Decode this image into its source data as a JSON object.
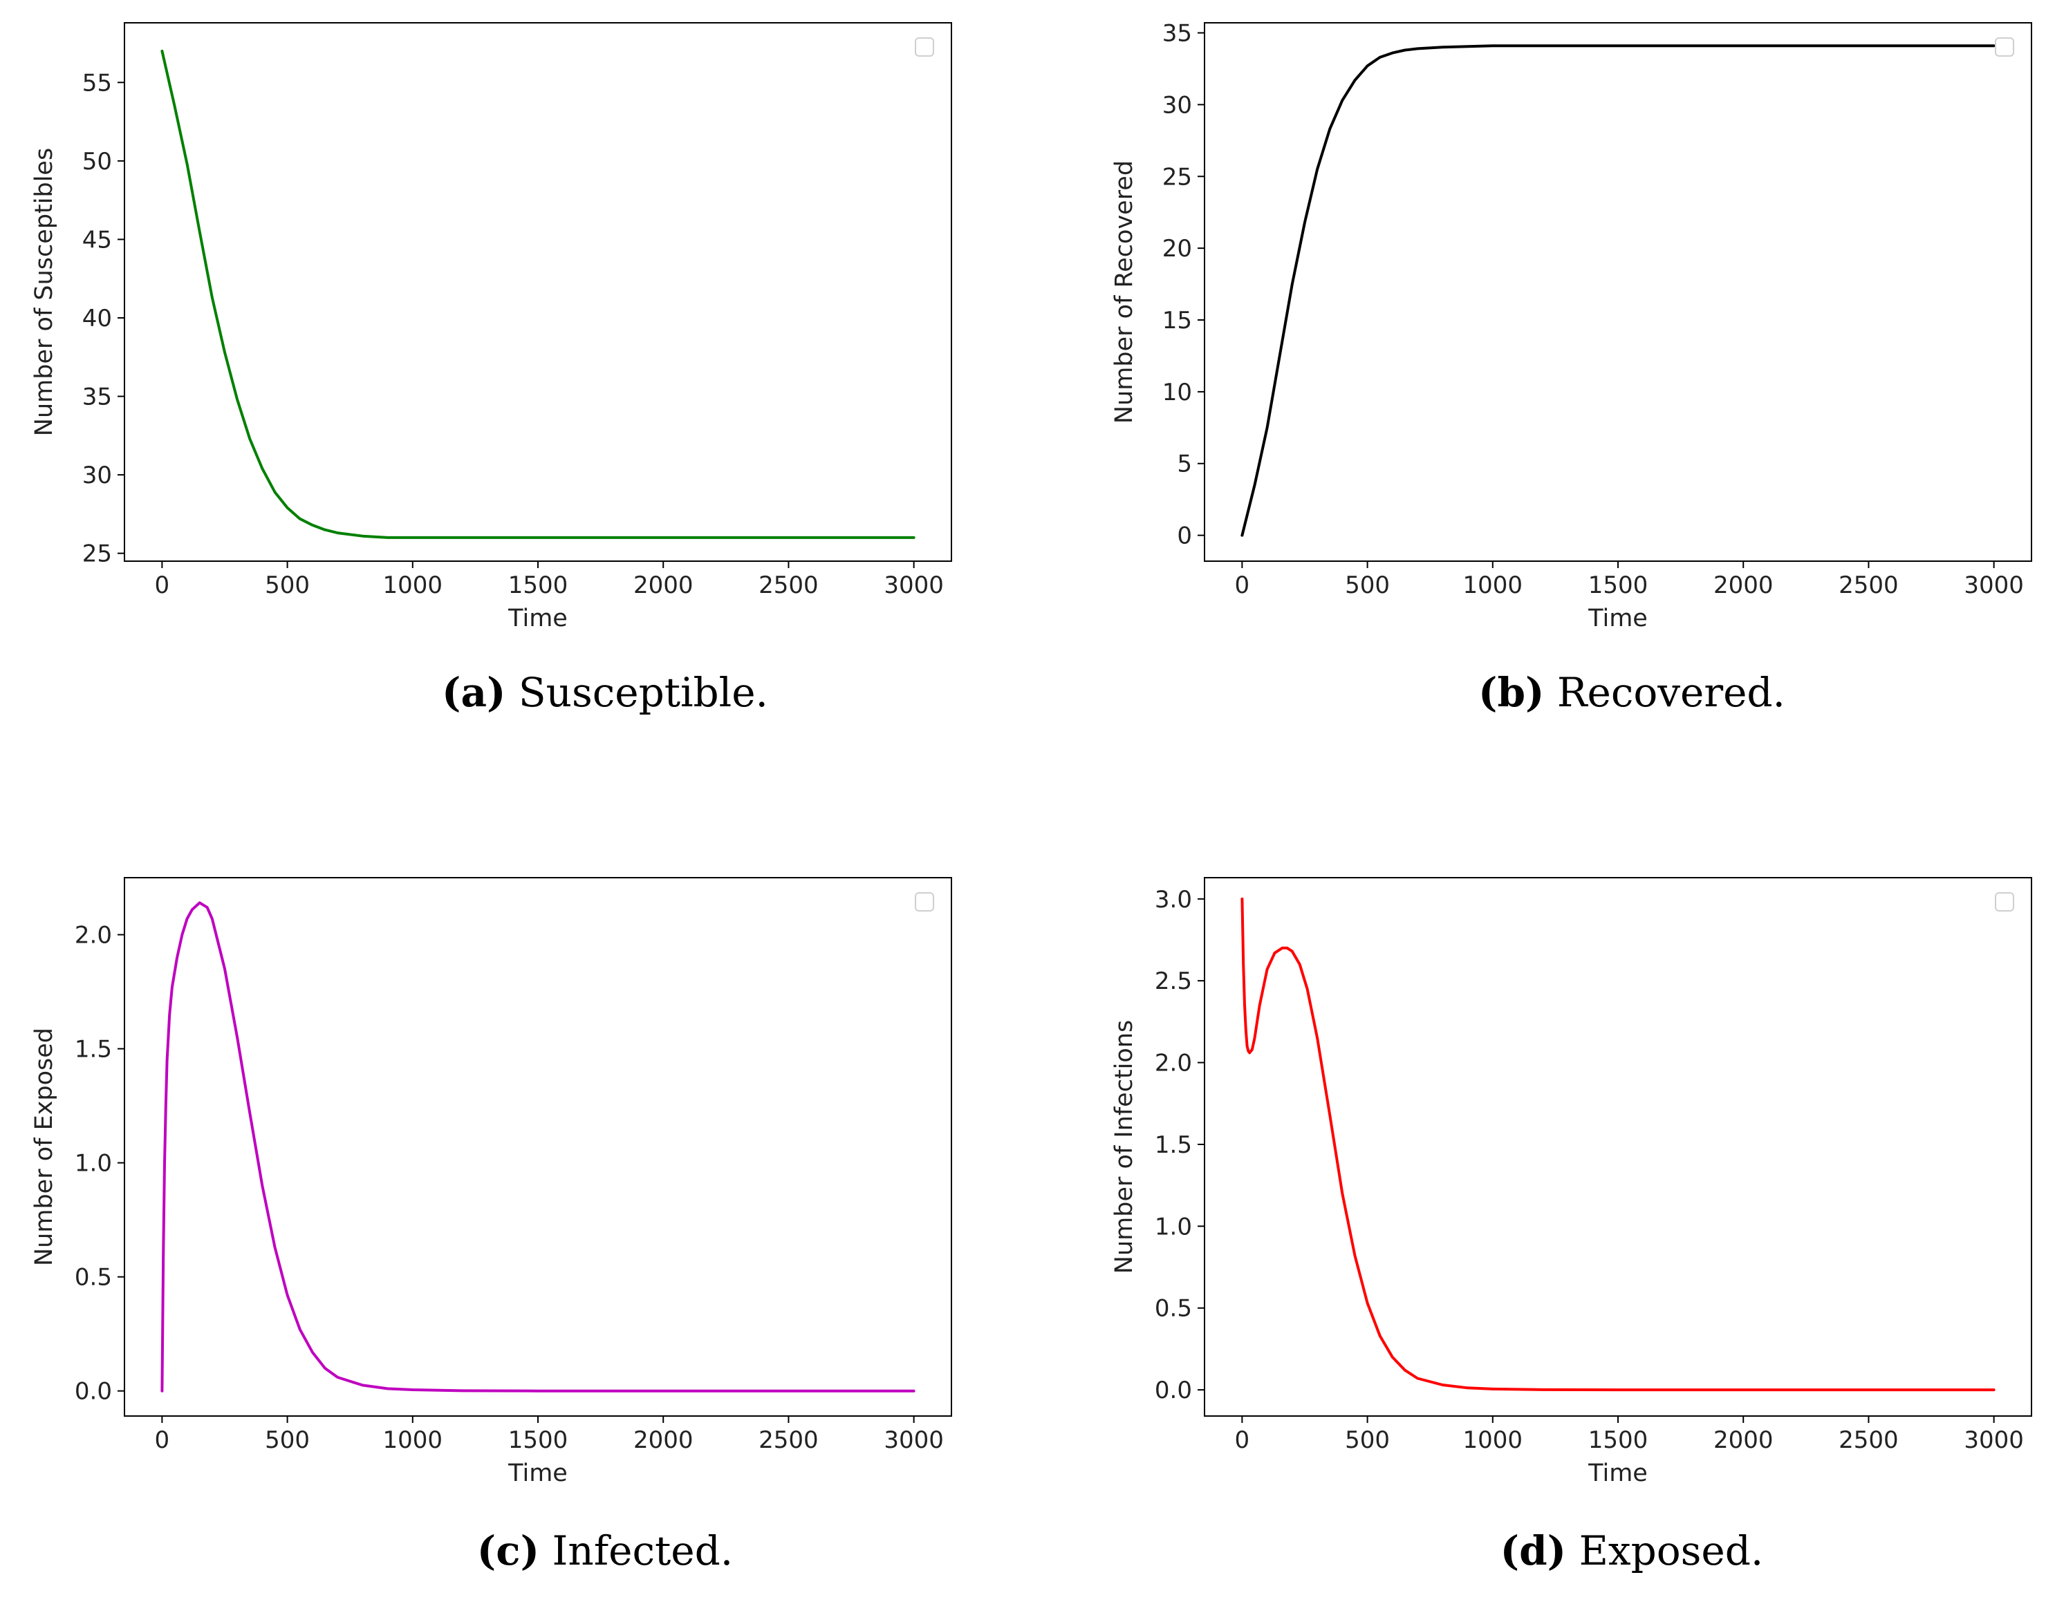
{
  "chart_data": [
    {
      "id": "a",
      "type": "line",
      "ylabel": "Number of Susceptibles",
      "xlabel": "Time",
      "xlim": [
        -150,
        3150
      ],
      "ylim": [
        24.5,
        58.8
      ],
      "xticks": [
        0,
        500,
        1000,
        1500,
        2000,
        2500,
        3000
      ],
      "yticks": [
        25,
        30,
        35,
        40,
        45,
        50,
        55
      ],
      "ytick_labels": [
        "25",
        "30",
        "35",
        "40",
        "45",
        "50",
        "55"
      ],
      "color": "#008000",
      "legend": "top-right (empty)",
      "series": [
        {
          "name": "Susceptible",
          "x": [
            0,
            50,
            100,
            150,
            200,
            250,
            300,
            350,
            400,
            450,
            500,
            550,
            600,
            650,
            700,
            800,
            900,
            1000,
            1100,
            1200,
            1500,
            2000,
            2500,
            3000
          ],
          "y": [
            57,
            53.5,
            49.8,
            45.5,
            41.3,
            37.8,
            34.8,
            32.3,
            30.4,
            28.9,
            27.9,
            27.2,
            26.8,
            26.5,
            26.3,
            26.1,
            26.0,
            26.0,
            26.0,
            26.0,
            26.0,
            26.0,
            26.0,
            26.0
          ]
        }
      ],
      "caption_letter": "(a)",
      "caption_text": " Susceptible."
    },
    {
      "id": "b",
      "type": "line",
      "ylabel": "Number of Recovered",
      "xlabel": "Time",
      "xlim": [
        -150,
        3150
      ],
      "ylim": [
        -1.8,
        35.7
      ],
      "xticks": [
        0,
        500,
        1000,
        1500,
        2000,
        2500,
        3000
      ],
      "yticks": [
        0,
        5,
        10,
        15,
        20,
        25,
        30,
        35
      ],
      "ytick_labels": [
        "0",
        "5",
        "10",
        "15",
        "20",
        "25",
        "30",
        "35"
      ],
      "color": "#000000",
      "legend": "top-right (empty)",
      "series": [
        {
          "name": "Recovered",
          "x": [
            0,
            50,
            100,
            150,
            200,
            250,
            300,
            350,
            400,
            450,
            500,
            550,
            600,
            650,
            700,
            800,
            900,
            1000,
            1200,
            1500,
            2000,
            2500,
            3000
          ],
          "y": [
            0,
            3.5,
            7.5,
            12.5,
            17.5,
            21.8,
            25.5,
            28.3,
            30.3,
            31.7,
            32.7,
            33.3,
            33.6,
            33.8,
            33.9,
            34.0,
            34.05,
            34.1,
            34.1,
            34.1,
            34.1,
            34.1,
            34.1
          ]
        }
      ],
      "caption_letter": "(b)",
      "caption_text": " Recovered."
    },
    {
      "id": "c",
      "type": "line",
      "ylabel": "Number of Exposed",
      "xlabel": "Time",
      "xlim": [
        -150,
        3150
      ],
      "ylim": [
        -0.11,
        2.25
      ],
      "xticks": [
        0,
        500,
        1000,
        1500,
        2000,
        2500,
        3000
      ],
      "yticks": [
        0,
        0.5,
        1.0,
        1.5,
        2.0
      ],
      "ytick_labels": [
        "0.0",
        "0.5",
        "1.0",
        "1.5",
        "2.0"
      ],
      "color": "#bf00bf",
      "legend": "top-right (empty)",
      "series": [
        {
          "name": "Exposed",
          "x": [
            0,
            5,
            10,
            15,
            20,
            30,
            40,
            60,
            80,
            100,
            120,
            150,
            180,
            200,
            250,
            300,
            350,
            400,
            450,
            500,
            550,
            600,
            650,
            700,
            800,
            900,
            1000,
            1200,
            1500,
            2000,
            2500,
            3000
          ],
          "y": [
            0,
            0.6,
            1.0,
            1.25,
            1.45,
            1.65,
            1.77,
            1.9,
            2.0,
            2.07,
            2.11,
            2.14,
            2.12,
            2.07,
            1.85,
            1.55,
            1.22,
            0.9,
            0.63,
            0.42,
            0.27,
            0.17,
            0.1,
            0.06,
            0.025,
            0.01,
            0.005,
            0.001,
            0,
            0,
            0,
            0
          ]
        }
      ],
      "caption_letter": "(c)",
      "caption_text": " Infected."
    },
    {
      "id": "d",
      "type": "line",
      "ylabel": "Number of Infections",
      "xlabel": "Time",
      "xlim": [
        -150,
        3150
      ],
      "ylim": [
        -0.16,
        3.13
      ],
      "xticks": [
        0,
        500,
        1000,
        1500,
        2000,
        2500,
        3000
      ],
      "yticks": [
        0,
        0.5,
        1.0,
        1.5,
        2.0,
        2.5,
        3.0
      ],
      "ytick_labels": [
        "0.0",
        "0.5",
        "1.0",
        "1.5",
        "2.0",
        "2.5",
        "3.0"
      ],
      "color": "#ff0000",
      "legend": "top-right (empty)",
      "series": [
        {
          "name": "Infections",
          "x": [
            0,
            5,
            10,
            15,
            20,
            25,
            30,
            40,
            50,
            70,
            100,
            130,
            160,
            180,
            200,
            230,
            260,
            300,
            350,
            400,
            450,
            500,
            550,
            600,
            650,
            700,
            800,
            900,
            1000,
            1200,
            1500,
            2000,
            2500,
            3000
          ],
          "y": [
            3.0,
            2.6,
            2.35,
            2.2,
            2.1,
            2.07,
            2.06,
            2.08,
            2.15,
            2.35,
            2.57,
            2.67,
            2.7,
            2.7,
            2.68,
            2.6,
            2.45,
            2.15,
            1.68,
            1.2,
            0.82,
            0.53,
            0.33,
            0.2,
            0.12,
            0.07,
            0.03,
            0.012,
            0.005,
            0.001,
            0,
            0,
            0,
            0
          ]
        }
      ],
      "caption_letter": "(d)",
      "caption_text": " Exposed."
    }
  ]
}
